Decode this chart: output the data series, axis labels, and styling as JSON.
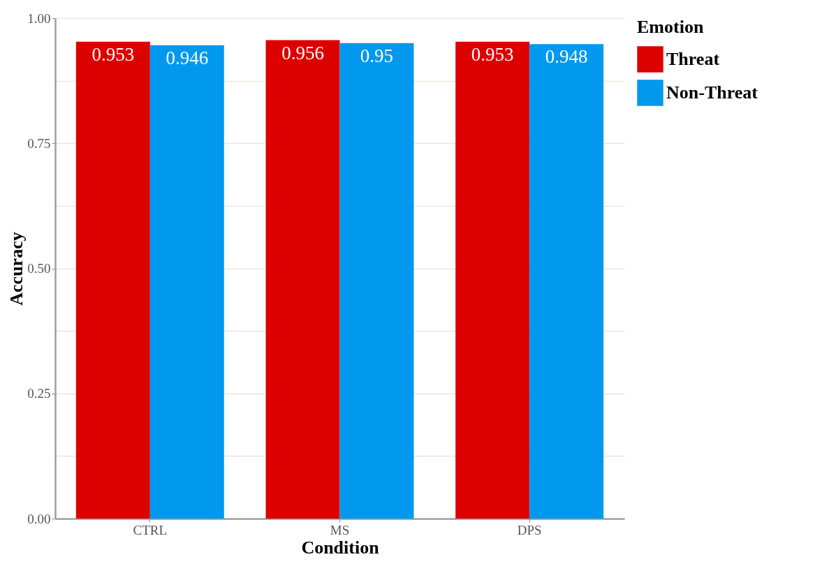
{
  "chart_data": {
    "type": "bar",
    "xlabel": "Condition",
    "ylabel": "Accuracy",
    "legend_title": "Emotion",
    "categories": [
      "CTRL",
      "MS",
      "DPS"
    ],
    "series": [
      {
        "name": "Threat",
        "color": "#dd0000",
        "values": [
          0.953,
          0.956,
          0.953
        ]
      },
      {
        "name": "Non-Threat",
        "color": "#0099ee",
        "values": [
          0.946,
          0.95,
          0.948
        ]
      }
    ],
    "ylim": [
      0,
      1
    ],
    "yticks": [
      {
        "value": 0,
        "label": "0.00"
      },
      {
        "value": 0.125,
        "label": null
      },
      {
        "value": 0.25,
        "label": "0.25"
      },
      {
        "value": 0.375,
        "label": null
      },
      {
        "value": 0.5,
        "label": "0.50"
      },
      {
        "value": 0.625,
        "label": null
      },
      {
        "value": 0.75,
        "label": "0.75"
      },
      {
        "value": 0.875,
        "label": null
      },
      {
        "value": 1,
        "label": "1.00"
      }
    ],
    "grid": "y",
    "legend": "right",
    "data_labels": true
  }
}
